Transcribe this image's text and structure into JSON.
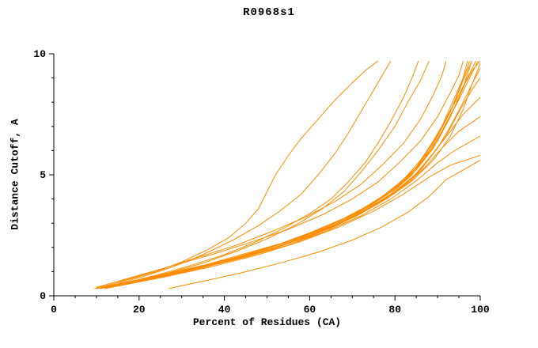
{
  "title": "R0968s1",
  "chart_data": {
    "type": "line",
    "title": "R0968s1",
    "xlabel": "Percent of Residues (CA)",
    "ylabel": "Distance Cutoff, A",
    "xlim": [
      0,
      100
    ],
    "ylim": [
      0,
      10
    ],
    "x_ticks": [
      0,
      20,
      40,
      60,
      80,
      100
    ],
    "y_ticks": [
      0,
      5,
      10
    ],
    "x_minor_step": 5,
    "y_minor_step": 1,
    "grid": false,
    "legend": "none",
    "line_color": "#ff8c00",
    "axis_color": "#000000",
    "background": "#ffffff",
    "series": [
      [
        [
          9.5,
          0.3
        ],
        [
          13,
          0.45
        ],
        [
          18,
          0.7
        ],
        [
          24,
          1.0
        ],
        [
          30,
          1.4
        ],
        [
          36,
          1.9
        ],
        [
          41,
          2.4
        ],
        [
          45,
          3.0
        ],
        [
          48,
          3.6
        ],
        [
          50,
          4.3
        ],
        [
          52,
          5.0
        ],
        [
          55,
          5.8
        ],
        [
          58,
          6.5
        ],
        [
          62,
          7.3
        ],
        [
          66,
          8.1
        ],
        [
          70,
          8.8
        ],
        [
          73,
          9.3
        ],
        [
          76,
          9.7
        ]
      ],
      [
        [
          10,
          0.3
        ],
        [
          15,
          0.5
        ],
        [
          21,
          0.8
        ],
        [
          28,
          1.2
        ],
        [
          35,
          1.7
        ],
        [
          42,
          2.3
        ],
        [
          48,
          2.9
        ],
        [
          53,
          3.5
        ],
        [
          58,
          4.2
        ],
        [
          62,
          5.0
        ],
        [
          66,
          5.9
        ],
        [
          69,
          6.7
        ],
        [
          72,
          7.6
        ],
        [
          75,
          8.5
        ],
        [
          77,
          9.1
        ],
        [
          79,
          9.7
        ]
      ],
      [
        [
          11,
          0.3
        ],
        [
          17,
          0.55
        ],
        [
          24,
          0.85
        ],
        [
          32,
          1.25
        ],
        [
          40,
          1.7
        ],
        [
          47,
          2.2
        ],
        [
          54,
          2.8
        ],
        [
          60,
          3.4
        ],
        [
          65,
          4.0
        ],
        [
          69,
          4.7
        ],
        [
          73,
          5.5
        ],
        [
          76,
          6.3
        ],
        [
          79,
          7.2
        ],
        [
          82,
          8.2
        ],
        [
          84,
          9.0
        ],
        [
          85.5,
          9.7
        ]
      ],
      [
        [
          12,
          0.3
        ],
        [
          19,
          0.6
        ],
        [
          27,
          0.95
        ],
        [
          35,
          1.35
        ],
        [
          43,
          1.85
        ],
        [
          50,
          2.35
        ],
        [
          57,
          2.95
        ],
        [
          63,
          3.6
        ],
        [
          68,
          4.3
        ],
        [
          72,
          5.1
        ],
        [
          76,
          6.0
        ],
        [
          80,
          7.0
        ],
        [
          83,
          8.0
        ],
        [
          86,
          8.9
        ],
        [
          88,
          9.7
        ]
      ],
      [
        [
          10,
          0.3
        ],
        [
          16,
          0.5
        ],
        [
          24,
          0.8
        ],
        [
          33,
          1.15
        ],
        [
          42,
          1.55
        ],
        [
          51,
          2.0
        ],
        [
          59,
          2.5
        ],
        [
          66,
          3.0
        ],
        [
          72,
          3.55
        ],
        [
          78,
          4.15
        ],
        [
          83,
          4.9
        ],
        [
          87,
          5.7
        ],
        [
          90,
          6.6
        ],
        [
          93,
          7.6
        ],
        [
          95,
          8.5
        ],
        [
          96.5,
          9.2
        ],
        [
          97.5,
          9.7
        ]
      ],
      [
        [
          11,
          0.32
        ],
        [
          18,
          0.55
        ],
        [
          27,
          0.9
        ],
        [
          36,
          1.3
        ],
        [
          45,
          1.75
        ],
        [
          54,
          2.2
        ],
        [
          62,
          2.7
        ],
        [
          69,
          3.25
        ],
        [
          75,
          3.85
        ],
        [
          80,
          4.5
        ],
        [
          85,
          5.3
        ],
        [
          88,
          6.1
        ],
        [
          91,
          7.0
        ],
        [
          94,
          8.0
        ],
        [
          96,
          8.9
        ],
        [
          98,
          9.7
        ]
      ],
      [
        [
          12,
          0.3
        ],
        [
          20,
          0.6
        ],
        [
          29,
          0.95
        ],
        [
          38,
          1.35
        ],
        [
          47,
          1.8
        ],
        [
          56,
          2.3
        ],
        [
          64,
          2.85
        ],
        [
          71,
          3.45
        ],
        [
          77,
          4.1
        ],
        [
          82,
          4.8
        ],
        [
          86,
          5.6
        ],
        [
          89,
          6.4
        ],
        [
          92,
          7.3
        ],
        [
          95,
          8.3
        ],
        [
          97,
          9.0
        ],
        [
          99,
          9.7
        ]
      ],
      [
        [
          13,
          0.35
        ],
        [
          21,
          0.65
        ],
        [
          30,
          1.0
        ],
        [
          40,
          1.45
        ],
        [
          49,
          1.9
        ],
        [
          58,
          2.4
        ],
        [
          66,
          2.95
        ],
        [
          73,
          3.55
        ],
        [
          79,
          4.2
        ],
        [
          84,
          5.0
        ],
        [
          88,
          5.9
        ],
        [
          91,
          6.8
        ],
        [
          94,
          7.8
        ],
        [
          96.5,
          8.8
        ],
        [
          98.5,
          9.4
        ],
        [
          100,
          9.7
        ]
      ],
      [
        [
          10,
          0.3
        ],
        [
          17,
          0.52
        ],
        [
          26,
          0.82
        ],
        [
          35,
          1.2
        ],
        [
          44,
          1.6
        ],
        [
          53,
          2.05
        ],
        [
          61,
          2.55
        ],
        [
          68,
          3.1
        ],
        [
          74,
          3.7
        ],
        [
          80,
          4.4
        ],
        [
          85,
          5.2
        ],
        [
          89,
          6.1
        ],
        [
          92,
          7.1
        ],
        [
          95,
          8.1
        ],
        [
          97.5,
          9.0
        ],
        [
          99.5,
          9.7
        ]
      ],
      [
        [
          11,
          0.3
        ],
        [
          19,
          0.58
        ],
        [
          28,
          0.92
        ],
        [
          38,
          1.32
        ],
        [
          48,
          1.78
        ],
        [
          57,
          2.28
        ],
        [
          65,
          2.8
        ],
        [
          72,
          3.4
        ],
        [
          78,
          4.05
        ],
        [
          84,
          4.8
        ],
        [
          88,
          5.65
        ],
        [
          92,
          6.6
        ],
        [
          95,
          7.6
        ],
        [
          98,
          8.5
        ],
        [
          100,
          9.0
        ]
      ],
      [
        [
          12,
          0.33
        ],
        [
          20,
          0.62
        ],
        [
          30,
          1.0
        ],
        [
          40,
          1.42
        ],
        [
          50,
          1.9
        ],
        [
          59,
          2.42
        ],
        [
          67,
          3.0
        ],
        [
          74,
          3.62
        ],
        [
          80,
          4.3
        ],
        [
          85,
          5.05
        ],
        [
          89,
          5.9
        ],
        [
          93,
          6.8
        ],
        [
          96,
          7.5
        ],
        [
          100,
          8.2
        ]
      ],
      [
        [
          13,
          0.35
        ],
        [
          22,
          0.68
        ],
        [
          32,
          1.08
        ],
        [
          42,
          1.52
        ],
        [
          52,
          2.0
        ],
        [
          61,
          2.55
        ],
        [
          69,
          3.15
        ],
        [
          76,
          3.8
        ],
        [
          82,
          4.5
        ],
        [
          87,
          5.3
        ],
        [
          91,
          6.1
        ],
        [
          95,
          6.8
        ],
        [
          100,
          7.4
        ]
      ],
      [
        [
          14,
          0.38
        ],
        [
          24,
          0.72
        ],
        [
          34,
          1.12
        ],
        [
          45,
          1.6
        ],
        [
          55,
          2.1
        ],
        [
          64,
          2.68
        ],
        [
          72,
          3.3
        ],
        [
          79,
          4.0
        ],
        [
          85,
          4.75
        ],
        [
          90,
          5.5
        ],
        [
          94,
          6.0
        ],
        [
          100,
          6.6
        ]
      ],
      [
        [
          15,
          0.4
        ],
        [
          26,
          0.78
        ],
        [
          37,
          1.2
        ],
        [
          48,
          1.7
        ],
        [
          58,
          2.25
        ],
        [
          67,
          2.85
        ],
        [
          75,
          3.5
        ],
        [
          82,
          4.2
        ],
        [
          88,
          4.9
        ],
        [
          93,
          5.4
        ],
        [
          100,
          5.8
        ]
      ],
      [
        [
          27,
          0.3
        ],
        [
          35,
          0.6
        ],
        [
          44,
          0.95
        ],
        [
          53,
          1.35
        ],
        [
          62,
          1.8
        ],
        [
          70,
          2.3
        ],
        [
          77,
          2.85
        ],
        [
          83,
          3.45
        ],
        [
          88,
          4.1
        ],
        [
          92,
          4.8
        ],
        [
          96,
          5.2
        ],
        [
          100,
          5.6
        ]
      ],
      [
        [
          10,
          0.3
        ],
        [
          15,
          0.48
        ],
        [
          22,
          0.75
        ],
        [
          31,
          1.1
        ],
        [
          41,
          1.5
        ],
        [
          50,
          1.95
        ],
        [
          58,
          2.45
        ],
        [
          66,
          3.0
        ],
        [
          73,
          3.6
        ],
        [
          79,
          4.3
        ],
        [
          84,
          5.1
        ],
        [
          88,
          6.0
        ],
        [
          91,
          7.0
        ],
        [
          94,
          8.2
        ],
        [
          96,
          9.0
        ],
        [
          97,
          9.7
        ]
      ],
      [
        [
          11,
          0.3
        ],
        [
          16,
          0.5
        ],
        [
          23,
          0.78
        ],
        [
          33,
          1.15
        ],
        [
          43,
          1.6
        ],
        [
          52,
          2.08
        ],
        [
          60,
          2.6
        ],
        [
          68,
          3.2
        ],
        [
          75,
          3.85
        ],
        [
          81,
          4.6
        ],
        [
          86,
          5.45
        ],
        [
          90,
          6.4
        ],
        [
          93,
          7.4
        ],
        [
          96,
          8.6
        ],
        [
          98,
          9.7
        ]
      ],
      [
        [
          10,
          0.35
        ],
        [
          14,
          0.55
        ],
        [
          20,
          0.85
        ],
        [
          28,
          1.25
        ],
        [
          37,
          1.7
        ],
        [
          46,
          2.2
        ],
        [
          55,
          2.75
        ],
        [
          63,
          3.35
        ],
        [
          70,
          4.0
        ],
        [
          76,
          4.7
        ],
        [
          81,
          5.5
        ],
        [
          86,
          6.4
        ],
        [
          90,
          7.4
        ],
        [
          93,
          8.4
        ],
        [
          95,
          9.1
        ],
        [
          96,
          9.7
        ]
      ],
      [
        [
          12,
          0.3
        ],
        [
          21,
          0.63
        ],
        [
          31,
          1.02
        ],
        [
          41,
          1.45
        ],
        [
          51,
          1.93
        ],
        [
          60,
          2.45
        ],
        [
          68,
          3.05
        ],
        [
          75,
          3.7
        ],
        [
          81,
          4.4
        ],
        [
          86,
          5.2
        ],
        [
          90,
          6.1
        ],
        [
          93,
          7.0
        ],
        [
          96,
          8.0
        ],
        [
          98.5,
          8.9
        ],
        [
          100,
          9.4
        ]
      ],
      [
        [
          13,
          0.33
        ],
        [
          23,
          0.7
        ],
        [
          33,
          1.1
        ],
        [
          44,
          1.58
        ],
        [
          54,
          2.1
        ],
        [
          63,
          2.67
        ],
        [
          71,
          3.3
        ],
        [
          78,
          4.0
        ],
        [
          84,
          4.75
        ],
        [
          89,
          5.6
        ],
        [
          93,
          6.6
        ],
        [
          96,
          7.7
        ],
        [
          98,
          8.7
        ],
        [
          100,
          9.6
        ]
      ],
      [
        [
          10,
          0.3
        ],
        [
          14,
          0.5
        ],
        [
          19,
          0.78
        ],
        [
          26,
          1.15
        ],
        [
          34,
          1.6
        ],
        [
          43,
          2.1
        ],
        [
          51,
          2.65
        ],
        [
          59,
          3.25
        ],
        [
          66,
          3.9
        ],
        [
          72,
          4.6
        ],
        [
          77,
          5.4
        ],
        [
          82,
          6.3
        ],
        [
          86,
          7.3
        ],
        [
          89,
          8.3
        ],
        [
          91,
          9.1
        ],
        [
          92,
          9.7
        ]
      ]
    ]
  }
}
